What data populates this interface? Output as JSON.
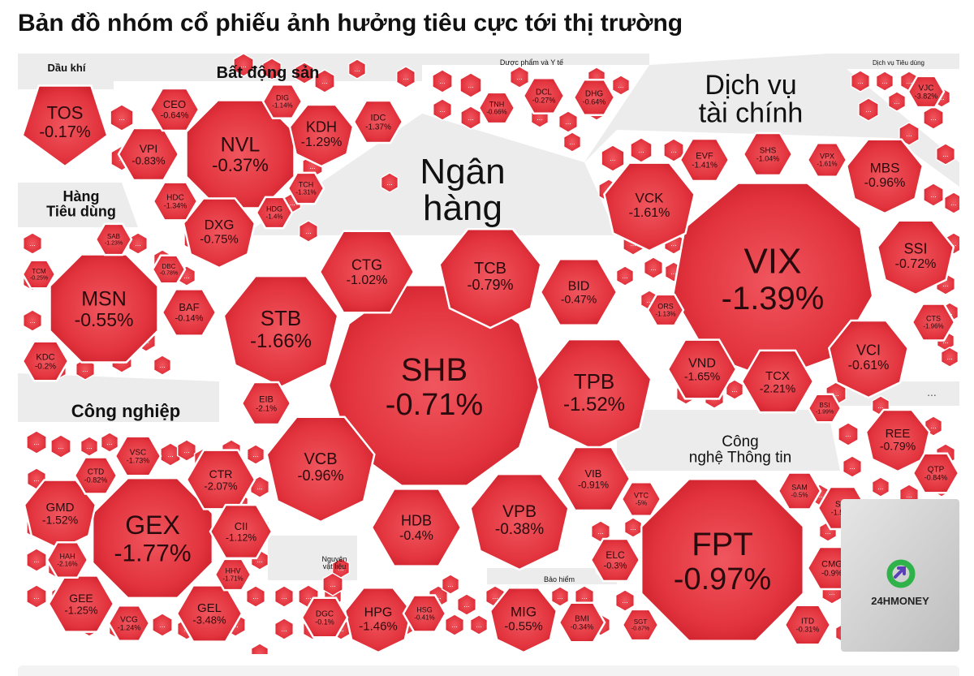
{
  "title": "Bản đồ nhóm cổ phiếu ảnh hưởng tiêu cực tới thị trường",
  "colors": {
    "cell": "#e2333d",
    "cell_light": "#f0565e",
    "cell_dark": "#c91d28",
    "border": "#ffffff",
    "sector_bg": "#ececec",
    "logo_bg": "#c9c9c9",
    "logo_green": "#2fb24a",
    "logo_purple": "#5b3fb8"
  },
  "logo": {
    "text": "24HMONEY"
  },
  "more_marker": "...",
  "chart_data": {
    "type": "treemap",
    "title": "Bản đồ nhóm cổ phiếu ảnh hưởng tiêu cực tới thị trường",
    "sectors": [
      {
        "name": "Dầu khí",
        "stocks": [
          {
            "ticker": "TOS",
            "change": "-0.17%"
          }
        ]
      },
      {
        "name": "Bất động sản",
        "stocks": [
          {
            "ticker": "NVL",
            "change": "-0.37%"
          },
          {
            "ticker": "KDH",
            "change": "-1.29%"
          },
          {
            "ticker": "DXG",
            "change": "-0.75%"
          },
          {
            "ticker": "VPI",
            "change": "-0.83%"
          },
          {
            "ticker": "CEO",
            "change": "-0.64%"
          },
          {
            "ticker": "DIG",
            "change": "-1.14%"
          },
          {
            "ticker": "IDC",
            "change": "-1.37%"
          },
          {
            "ticker": "HDC",
            "change": "-1.34%"
          },
          {
            "ticker": "TCH",
            "change": "-1.31%"
          },
          {
            "ticker": "HDG",
            "change": "-1.4%"
          }
        ]
      },
      {
        "name": "Dược phẩm và Y tế",
        "stocks": [
          {
            "ticker": "TNH",
            "change": "-0.66%"
          },
          {
            "ticker": "DCL",
            "change": "-0.27%"
          },
          {
            "ticker": "DHG",
            "change": "-0.64%"
          }
        ]
      },
      {
        "name": "Dịch vụ Tiêu dùng",
        "stocks": [
          {
            "ticker": "VJC",
            "change": "-3.82%"
          }
        ]
      },
      {
        "name": "Dịch vụ tài chính",
        "stocks": [
          {
            "ticker": "VIX",
            "change": "-1.39%"
          },
          {
            "ticker": "VCK",
            "change": "-1.61%"
          },
          {
            "ticker": "MBS",
            "change": "-0.96%"
          },
          {
            "ticker": "SSI",
            "change": "-0.72%"
          },
          {
            "ticker": "VCI",
            "change": "-0.61%"
          },
          {
            "ticker": "VND",
            "change": "-1.65%"
          },
          {
            "ticker": "TCX",
            "change": "-2.21%"
          },
          {
            "ticker": "EVF",
            "change": "-1.41%"
          },
          {
            "ticker": "SHS",
            "change": "-1.04%"
          },
          {
            "ticker": "VPX",
            "change": "-1.61%"
          },
          {
            "ticker": "ORS",
            "change": "-1.13%"
          },
          {
            "ticker": "CTS",
            "change": "-1.96%"
          },
          {
            "ticker": "BSI",
            "change": "-1.99%"
          }
        ]
      },
      {
        "name": "Ngân hàng",
        "stocks": [
          {
            "ticker": "SHB",
            "change": "-0.71%"
          },
          {
            "ticker": "STB",
            "change": "-1.66%"
          },
          {
            "ticker": "CTG",
            "change": "-1.02%"
          },
          {
            "ticker": "TCB",
            "change": "-0.79%"
          },
          {
            "ticker": "BID",
            "change": "-0.47%"
          },
          {
            "ticker": "TPB",
            "change": "-1.52%"
          },
          {
            "ticker": "VCB",
            "change": "-0.96%"
          },
          {
            "ticker": "HDB",
            "change": "-0.4%"
          },
          {
            "ticker": "VPB",
            "change": "-0.38%"
          },
          {
            "ticker": "VIB",
            "change": "-0.91%"
          },
          {
            "ticker": "EIB",
            "change": "-2.1%"
          }
        ]
      },
      {
        "name": "Hàng Tiêu dùng",
        "stocks": [
          {
            "ticker": "MSN",
            "change": "-0.55%"
          },
          {
            "ticker": "BAF",
            "change": "-0.14%"
          },
          {
            "ticker": "KDC",
            "change": "-0.2%"
          },
          {
            "ticker": "SAB",
            "change": "-1.23%"
          },
          {
            "ticker": "TCM",
            "change": "-0.25%"
          },
          {
            "ticker": "DBC",
            "change": "-0.78%"
          }
        ]
      },
      {
        "name": "Công nghiệp",
        "stocks": [
          {
            "ticker": "GEX",
            "change": "-1.77%"
          },
          {
            "ticker": "GMD",
            "change": "-1.52%"
          },
          {
            "ticker": "CTR",
            "change": "-2.07%"
          },
          {
            "ticker": "CII",
            "change": "-1.12%"
          },
          {
            "ticker": "GEL",
            "change": "-3.48%"
          },
          {
            "ticker": "GEE",
            "change": "-1.25%"
          },
          {
            "ticker": "VSC",
            "change": "-1.73%"
          },
          {
            "ticker": "CTD",
            "change": "-0.82%"
          },
          {
            "ticker": "HAH",
            "change": "-2.16%"
          },
          {
            "ticker": "HHV",
            "change": "-1.71%"
          },
          {
            "ticker": "VCG",
            "change": "-1.24%"
          }
        ]
      },
      {
        "name": "Nguyên vật liệu",
        "stocks": [
          {
            "ticker": "HPG",
            "change": "-1.46%"
          },
          {
            "ticker": "DGC",
            "change": "-0.1%"
          },
          {
            "ticker": "HSG",
            "change": "-0.41%"
          }
        ]
      },
      {
        "name": "Bảo hiểm",
        "stocks": [
          {
            "ticker": "MIG",
            "change": "-0.55%"
          },
          {
            "ticker": "BMI",
            "change": "-0.34%"
          }
        ]
      },
      {
        "name": "Công nghệ Thông tin",
        "stocks": [
          {
            "ticker": "FPT",
            "change": "-0.97%"
          },
          {
            "ticker": "ELC",
            "change": "-0.3%"
          },
          {
            "ticker": "VTC",
            "change": "-5%"
          },
          {
            "ticker": "SAM",
            "change": "-0.5%"
          },
          {
            "ticker": "ST8",
            "change": "-1.59%"
          },
          {
            "ticker": "CMG",
            "change": "-0.9%"
          },
          {
            "ticker": "ITD",
            "change": "-0.31%"
          },
          {
            "ticker": "SGT",
            "change": "-0.87%"
          }
        ]
      },
      {
        "name": "",
        "stocks": [
          {
            "ticker": "REE",
            "change": "-0.79%"
          },
          {
            "ticker": "QTP",
            "change": "-0.84%"
          }
        ]
      }
    ]
  }
}
